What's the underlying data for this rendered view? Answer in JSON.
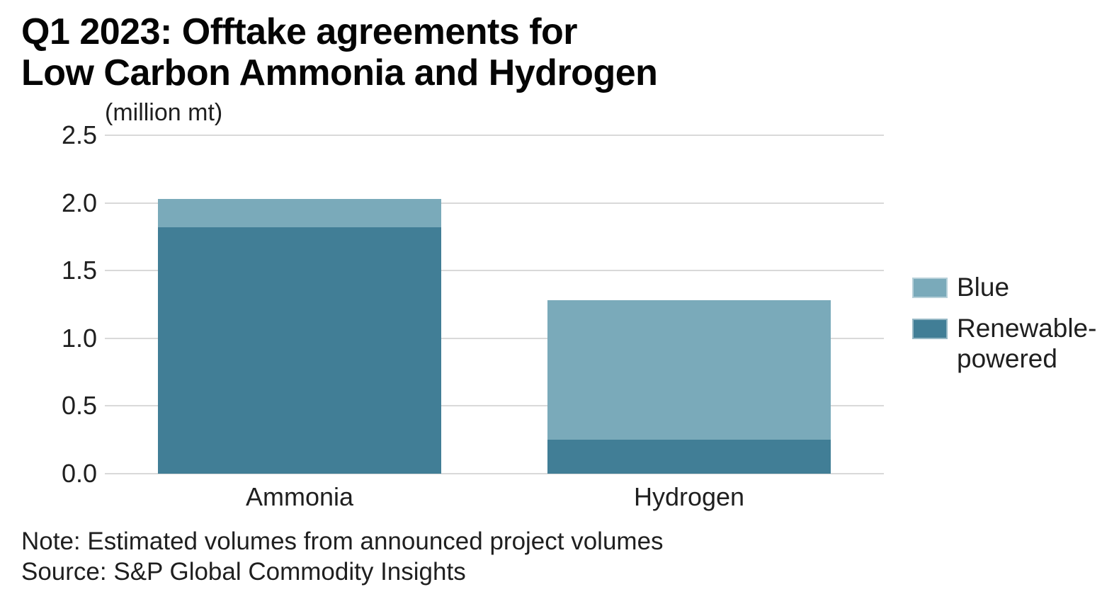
{
  "chart_data": {
    "type": "bar",
    "stacked": true,
    "title": "Q1 2023: Offtake agreements for Low Carbon Ammonia and Hydrogen",
    "title_lines": [
      "Q1 2023: Offtake agreements for",
      "Low Carbon Ammonia and Hydrogen"
    ],
    "unit_label": "(million mt)",
    "categories": [
      "Ammonia",
      "Hydrogen"
    ],
    "series": [
      {
        "name": "Blue",
        "values": [
          0.21,
          1.03
        ],
        "color": "#7aaaba"
      },
      {
        "name": "Renewable-powered",
        "values": [
          1.82,
          0.25
        ],
        "color": "#417e96"
      }
    ],
    "stack_bottom_to_top": [
      "Renewable-powered",
      "Blue"
    ],
    "ylim": [
      0,
      2.5
    ],
    "yticks": [
      "0.0",
      "0.5",
      "1.0",
      "1.5",
      "2.0",
      "2.5"
    ],
    "grid": "horizontal",
    "legend_position": "right",
    "note": "Note: Estimated volumes from announced project volumes",
    "source": "Source: S&P Global Commodity Insights"
  },
  "colors": {
    "background": "#ffffff",
    "title_text": "#050505",
    "axis_text": "#1f1f1f",
    "gridline": "#d9d9d9",
    "series_blue": "#7aaaba",
    "series_renewable": "#417e96"
  }
}
